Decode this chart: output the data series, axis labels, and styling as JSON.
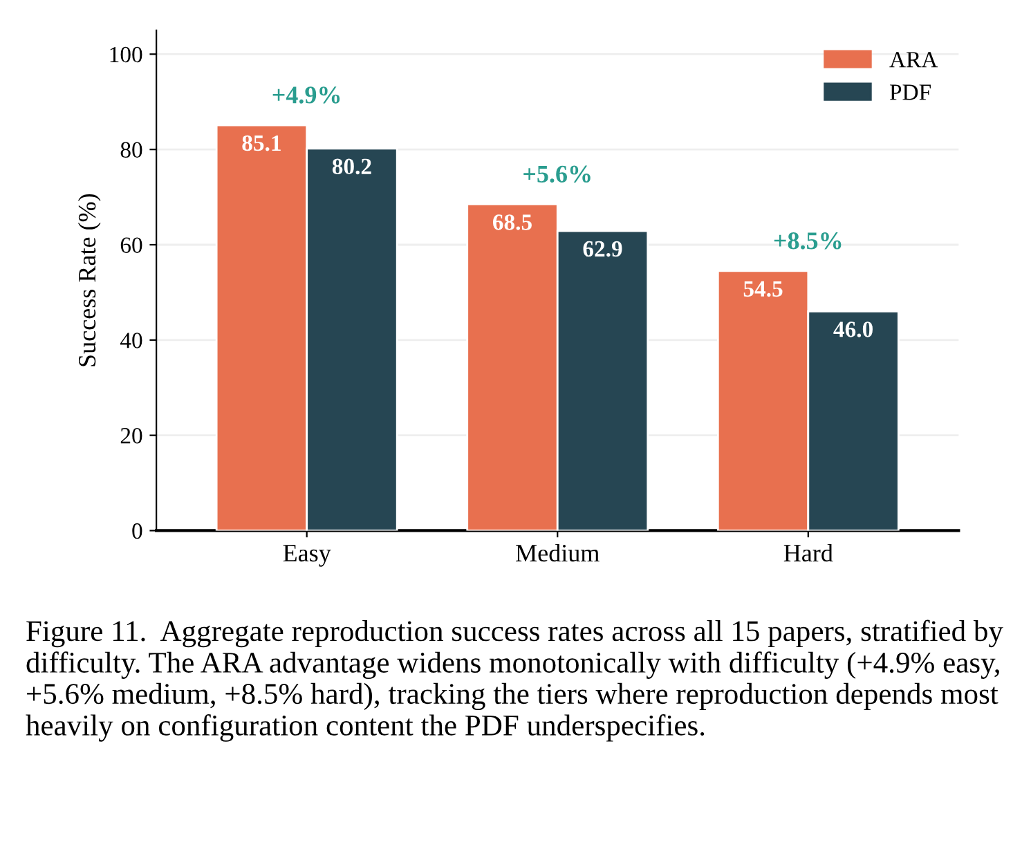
{
  "chart_data": {
    "type": "bar",
    "ylabel": "Success Rate (%)",
    "categories": [
      "Easy",
      "Medium",
      "Hard"
    ],
    "series": [
      {
        "name": "ARA",
        "color": "#e8704f",
        "values": [
          85.1,
          68.5,
          54.5
        ],
        "value_labels": [
          "85.1",
          "68.5",
          "54.5"
        ]
      },
      {
        "name": "PDF",
        "color": "#264653",
        "values": [
          80.2,
          62.9,
          46.0
        ],
        "value_labels": [
          "80.2",
          "62.9",
          "46.0"
        ]
      }
    ],
    "ylim": [
      0,
      105
    ],
    "yticks": [
      0,
      20,
      40,
      60,
      80,
      100
    ],
    "grid": "y",
    "legend": "top right",
    "annotations": [
      "+4.9%",
      "+5.6%",
      "+8.5%",
      "Figure 11.  Aggregate reproduction success rates across all 15 papers, stratified by difficulty. The ARA advantage widens monotonically with difficulty (+4.9% easy, +5.6% medium, +8.5% hard), tracking the tiers where reproduction depends most heavily on configuration content the PDF underspecifies."
    ]
  }
}
